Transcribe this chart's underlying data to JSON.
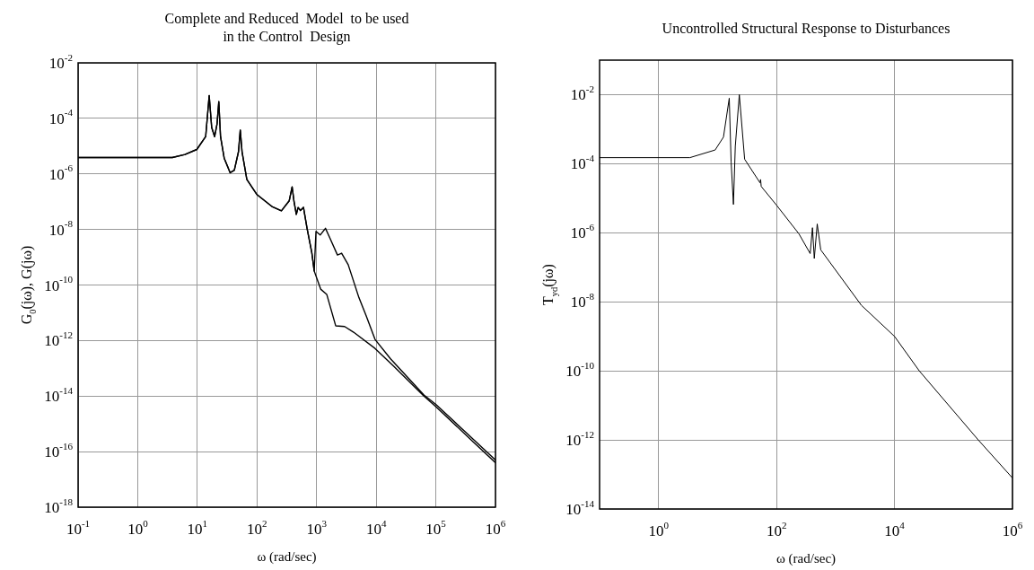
{
  "chart_data": [
    {
      "type": "line",
      "title": "Complete and Reduced  Model  to be used\nin the Control  Design",
      "xlabel": "ω (rad/sec)",
      "ylabel": "G$_{0}$(jω), G(jω)",
      "log": "xy",
      "grid": true,
      "xlim": [
        0.1,
        1000000
      ],
      "ylim": [
        1e-18,
        0.01
      ],
      "xticks": [
        {
          "value": 0.1,
          "label": "10$^{-1}$"
        },
        {
          "value": 1,
          "label": "10$^{0}$"
        },
        {
          "value": 10,
          "label": "10$^{1}$"
        },
        {
          "value": 100,
          "label": "10$^{2}$"
        },
        {
          "value": 1000,
          "label": "10$^{3}$"
        },
        {
          "value": 10000,
          "label": "10$^{4}$"
        },
        {
          "value": 100000,
          "label": "10$^{5}$"
        },
        {
          "value": 1000000,
          "label": "10$^{6}$"
        }
      ],
      "yticks": [
        {
          "value": 1e-18,
          "label": "10$^{-18}$"
        },
        {
          "value": 1e-16,
          "label": "10$^{-16}$"
        },
        {
          "value": 1e-14,
          "label": "10$^{-14}$"
        },
        {
          "value": 1e-12,
          "label": "10$^{-12}$"
        },
        {
          "value": 1e-10,
          "label": "10$^{-10}$"
        },
        {
          "value": 1e-08,
          "label": "10$^{-8}$"
        },
        {
          "value": 1e-06,
          "label": "10$^{-6}$"
        },
        {
          "value": 0.0001,
          "label": "10$^{-4}$"
        },
        {
          "value": 0.01,
          "label": "10$^{-2}$"
        }
      ],
      "series": [
        {
          "color": "#000000",
          "x": [
            0.1,
            3.8,
            6.2,
            9.8,
            13.8,
            15.8,
            17.4,
            19.5,
            21.4,
            22.9,
            24.5,
            28.2,
            35.5,
            41.7,
            49,
            52.5,
            56.2,
            67.6,
            100,
            182,
            257,
            347,
            389,
            417,
            457,
            490,
            537,
            603,
            692,
            832,
            912,
            977,
            1150,
            1410,
            1660,
            2240,
            2630,
            3390,
            5130,
            6760,
            9550,
            17400,
            63100,
            100000,
            447000,
            1000000
          ],
          "values": [
            3.9e-06,
            3.9e-06,
            5e-06,
            7.6e-06,
            2.2e-05,
            0.00066,
            4.7e-05,
            2.2e-05,
            6.3e-05,
            0.0004,
            2.2e-05,
            3.7e-06,
            1.1e-06,
            1.35e-06,
            6.3e-06,
            3.8e-05,
            6.3e-06,
            6.3e-07,
            1.8e-07,
            6.5e-08,
            4.7e-08,
            1.07e-07,
            3.4e-07,
            1.07e-07,
            3.5e-08,
            6.2e-08,
            4.8e-08,
            6.2e-08,
            1.1e-08,
            1.45e-09,
            3.2e-10,
            8.5e-09,
            6.3e-09,
            1.1e-08,
            5.1e-09,
            1.2e-09,
            1.4e-09,
            5.4e-10,
            3.5e-11,
            7.9e-12,
            1.1e-12,
            2.2e-13,
            1.1e-14,
            5e-15,
            2.5e-16,
            5e-17
          ]
        },
        {
          "color": "#000000",
          "x": [
            0.1,
            3.8,
            6.2,
            9.8,
            13.8,
            15.8,
            17.4,
            19.5,
            21.4,
            22.9,
            24.5,
            28.2,
            35.5,
            41.7,
            49,
            52.5,
            56.2,
            67.6,
            100,
            182,
            257,
            347,
            389,
            417,
            457,
            490,
            537,
            603,
            692,
            832,
            912,
            1170,
            1480,
            2090,
            2950,
            4170,
            9550,
            19500,
            63100,
            100000,
            447000,
            1000000
          ],
          "values": [
            3.9e-06,
            3.9e-06,
            5e-06,
            7.6e-06,
            2.2e-05,
            0.00066,
            4.7e-05,
            2.2e-05,
            6.3e-05,
            0.0004,
            2.2e-05,
            3.7e-06,
            1.1e-06,
            1.35e-06,
            6.3e-06,
            3.8e-05,
            6.3e-06,
            6.3e-07,
            1.8e-07,
            6.5e-08,
            4.7e-08,
            1.07e-07,
            3.4e-07,
            1.07e-07,
            3.5e-08,
            6.2e-08,
            4.8e-08,
            6.2e-08,
            1.1e-08,
            1.45e-09,
            3.2e-10,
            7.1e-11,
            4.6e-11,
            3.4e-12,
            3.2e-12,
            2e-12,
            5.2e-13,
            1.2e-13,
            1e-14,
            4.2e-15,
            2e-16,
            4e-17
          ]
        }
      ]
    },
    {
      "type": "line",
      "title": "Uncontrolled Structural Response to Disturbances",
      "xlabel": "ω (rad/sec)",
      "ylabel": "T$_{yd}$(jω)",
      "log": "xy",
      "grid": true,
      "xlim": [
        0.1,
        1000000
      ],
      "ylim": [
        1e-14,
        0.1
      ],
      "xticks": [
        {
          "value": 1,
          "label": "10$^{0}$"
        },
        {
          "value": 100,
          "label": "10$^{2}$"
        },
        {
          "value": 10000,
          "label": "10$^{4}$"
        },
        {
          "value": 1000000,
          "label": "10$^{6}$"
        }
      ],
      "yticks": [
        {
          "value": 1e-14,
          "label": "10$^{-14}$"
        },
        {
          "value": 1e-12,
          "label": "10$^{-12}$"
        },
        {
          "value": 1e-10,
          "label": "10$^{-10}$"
        },
        {
          "value": 1e-08,
          "label": "10$^{-8}$"
        },
        {
          "value": 1e-06,
          "label": "10$^{-6}$"
        },
        {
          "value": 0.0001,
          "label": "10$^{-4}$"
        },
        {
          "value": 0.01,
          "label": "10$^{-2}$"
        }
      ],
      "series": [
        {
          "color": "#000000",
          "x": [
            0.1,
            3.4,
            9.1,
            12.6,
            15.8,
            17,
            18.6,
            20,
            23.4,
            28.8,
            52.5,
            53.7,
            55,
            100,
            240,
            372,
            407,
            437,
            490,
            562,
            2750,
            10000,
            26300,
            263000,
            1000000
          ],
          "values": [
            0.00015,
            0.00015,
            0.00025,
            0.00059,
            0.0079,
            0.00011,
            6.6e-06,
            0.00032,
            0.01,
            0.000135,
            2.8e-05,
            3.5e-05,
            2.2e-05,
            6.3e-06,
            9.3e-07,
            2.5e-07,
            1.4e-06,
            1.8e-07,
            1.8e-06,
            3.2e-07,
            7.9e-09,
            1e-09,
            1e-10,
            1e-12,
            7.9e-14
          ]
        }
      ]
    }
  ]
}
